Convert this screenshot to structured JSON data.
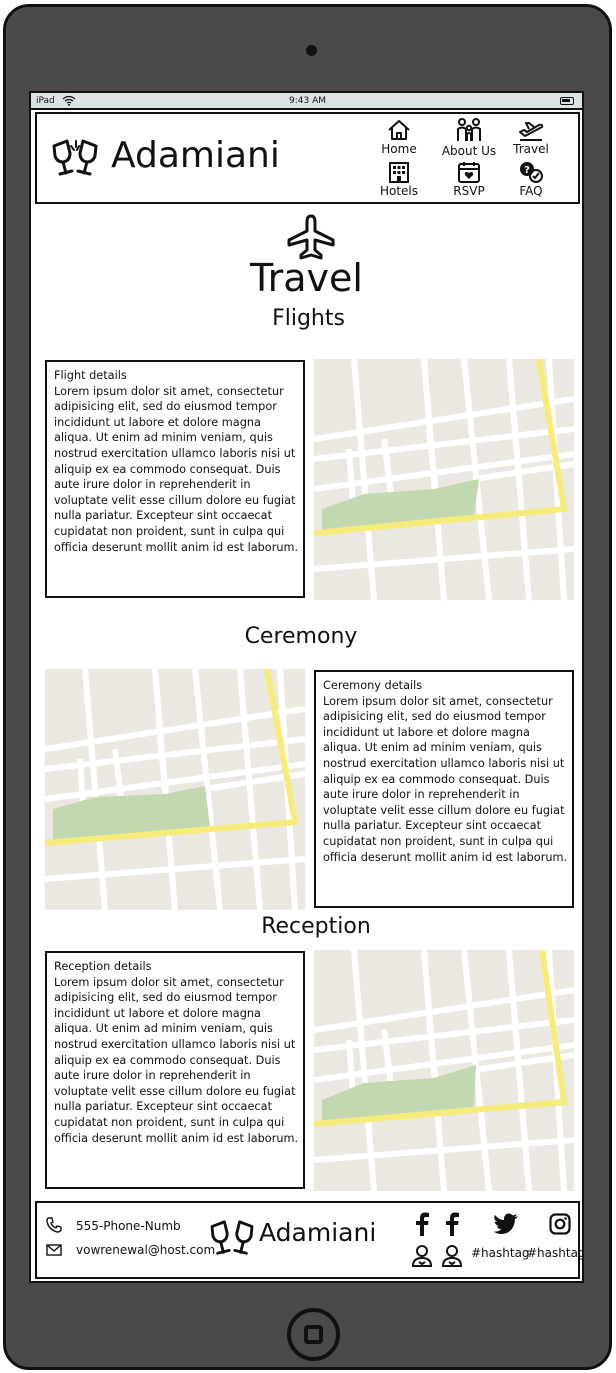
{
  "status_bar": {
    "device": "iPad",
    "time": "9:43 AM"
  },
  "brand": {
    "name": "Adamiani",
    "icon": "champagne-glasses-icon"
  },
  "nav": {
    "items": [
      {
        "label": "Home",
        "icon": "home-icon"
      },
      {
        "label": "About Us",
        "icon": "family-icon"
      },
      {
        "label": "Travel",
        "icon": "plane-takeoff-icon"
      },
      {
        "label": "Hotels",
        "icon": "hotel-icon"
      },
      {
        "label": "RSVP",
        "icon": "calendar-heart-icon"
      },
      {
        "label": "FAQ",
        "icon": "question-chat-icon"
      }
    ]
  },
  "page": {
    "title": "Travel",
    "icon": "airplane-icon"
  },
  "sections": [
    {
      "title": "Flights",
      "details_title": "Flight details",
      "details_text": "Lorem ipsum dolor sit amet, consectetur adipisicing elit, sed do eiusmod tempor incididunt ut labore et dolore magna aliqua. Ut enim ad minim veniam, quis nostrud exercitation ullamco laboris nisi ut aliquip ex ea commodo consequat. Duis aute irure dolor in reprehenderit in voluptate velit esse cillum dolore eu fugiat nulla pariatur. Excepteur sint occaecat cupidatat non proident, sunt in culpa qui officia deserunt mollit anim id est laborum."
    },
    {
      "title": "Ceremony",
      "details_title": "Ceremony details",
      "details_text": "Lorem ipsum dolor sit amet, consectetur adipisicing elit, sed do eiusmod tempor incididunt ut labore et dolore magna aliqua. Ut enim ad minim veniam, quis nostrud exercitation ullamco laboris nisi ut aliquip ex ea commodo consequat. Duis aute irure dolor in reprehenderit in voluptate velit esse cillum dolore eu fugiat nulla pariatur. Excepteur sint occaecat cupidatat non proident, sunt in culpa qui officia deserunt mollit anim id est laborum."
    },
    {
      "title": "Reception",
      "details_title": "Reception details",
      "details_text": "Lorem ipsum dolor sit amet, consectetur adipisicing elit, sed do eiusmod tempor incididunt ut labore et dolore magna aliqua. Ut enim ad minim veniam, quis nostrud exercitation ullamco laboris nisi ut aliquip ex ea commodo consequat. Duis aute irure dolor in reprehenderit in voluptate velit esse cillum dolore eu fugiat nulla pariatur. Excepteur sint occaecat cupidatat non proident, sunt in culpa qui officia deserunt mollit anim id est laborum."
    }
  ],
  "footer": {
    "phone": "555-Phone-Numb",
    "email": "vowrenewal@host.com",
    "brand_name": "Adamiani",
    "hashtags": [
      "#hashtag",
      "#hashtag"
    ],
    "social_icons": [
      "facebook-icon",
      "facebook-icon",
      "twitter-icon",
      "instagram-icon",
      "user-icon",
      "user-icon"
    ]
  },
  "colors": {
    "device_frame": "#4a4a4a",
    "status_bar": "#dde3e4",
    "map_ground": "#ebe8e1",
    "map_park": "#c1d8b0",
    "map_road_major": "#f7eb7a",
    "map_road_minor": "#ffffff"
  }
}
